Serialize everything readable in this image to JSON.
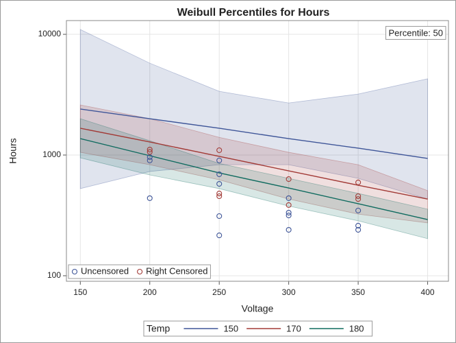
{
  "chart_data": {
    "type": "line",
    "title": "Weibull Percentiles for Hours",
    "xlabel": "Voltage",
    "ylabel": "Hours",
    "annotation": "Percentile: 50",
    "log_y": true,
    "grid": true,
    "xlim": [
      140,
      415
    ],
    "ylim": [
      90,
      13000
    ],
    "xticks": [
      150,
      200,
      250,
      300,
      350,
      400
    ],
    "yticks": [
      100,
      1000,
      10000
    ],
    "x": [
      150,
      200,
      250,
      300,
      350,
      400
    ],
    "legend_title": "Temp",
    "series": [
      {
        "name": "150",
        "color": "#3e5598",
        "values": [
          2405,
          2000,
          1667,
          1368,
          1140,
          937
        ],
        "upper": [
          10960,
          5770,
          3370,
          2700,
          3200,
          4280
        ],
        "lower": [
          527,
          731,
          831,
          831,
          641,
          432
        ]
      },
      {
        "name": "170",
        "color": "#a23a36",
        "values": [
          1667,
          1283,
          975,
          740,
          562,
          432
        ],
        "upper": [
          2600,
          2000,
          1400,
          1053,
          831,
          507
        ],
        "lower": [
          1053,
          831,
          623,
          432,
          324,
          274
        ]
      },
      {
        "name": "180",
        "color": "#0f6b5f",
        "values": [
          1368,
          987,
          711,
          533,
          395,
          292
        ],
        "upper": [
          2000,
          1313,
          852,
          641,
          481,
          356
        ],
        "lower": [
          948,
          684,
          527,
          378,
          285,
          203
        ]
      }
    ],
    "scatter": [
      {
        "name": "Uncensored",
        "color": "#3e5598",
        "x": [
          200,
          200,
          200,
          250,
          250,
          250,
          250,
          250,
          300,
          300,
          300,
          300,
          350,
          350,
          350
        ],
        "values": [
          439,
          902,
          961,
          216,
          312,
          577,
          693,
          902,
          240,
          316,
          333,
          439,
          240,
          260,
          347
        ]
      },
      {
        "name": "Right Censored",
        "color": "#a23a36",
        "x": [
          200,
          200,
          250,
          250,
          250,
          300,
          300,
          350,
          350,
          350
        ],
        "values": [
          1060,
          1110,
          456,
          480,
          1096,
          385,
          632,
          432,
          456,
          593
        ]
      }
    ]
  }
}
